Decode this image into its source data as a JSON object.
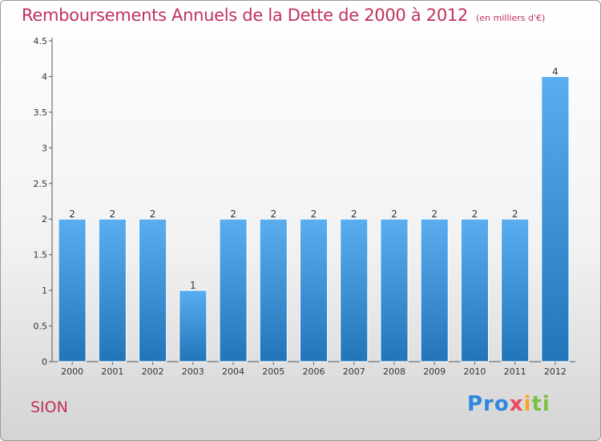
{
  "title": "Remboursements Annuels de la Dette de 2000 à 2012",
  "subtitle": "(en milliers d'€)",
  "commune": "SION",
  "brand": {
    "parts": [
      "Pro",
      "x",
      "i",
      "ti"
    ]
  },
  "colors": {
    "title": "#c0325a",
    "bar_light": "#5aaef0",
    "bar_dark": "#2275b8"
  },
  "chart_data": {
    "type": "bar",
    "title": "Remboursements Annuels de la Dette de 2000 à 2012",
    "subtitle": "(en milliers d'€)",
    "xlabel": "",
    "ylabel": "",
    "categories": [
      "2000",
      "2001",
      "2002",
      "2003",
      "2004",
      "2005",
      "2006",
      "2007",
      "2008",
      "2009",
      "2010",
      "2011",
      "2012"
    ],
    "values": [
      2,
      2,
      2,
      1,
      2,
      2,
      2,
      2,
      2,
      2,
      2,
      2,
      4
    ],
    "data_labels": [
      "2",
      "2",
      "2",
      "1",
      "2",
      "2",
      "2",
      "2",
      "2",
      "2",
      "2",
      "2",
      "4"
    ],
    "ylim": [
      0,
      4.5
    ],
    "yticks": [
      0,
      0.5,
      1,
      1.5,
      2,
      2.5,
      3,
      3.5,
      4,
      4.5
    ],
    "ytick_labels": [
      "0",
      "0.5",
      "1",
      "1.5",
      "2",
      "2.5",
      "3",
      "3.5",
      "4",
      "4.5"
    ],
    "grid": false,
    "legend": "none"
  }
}
